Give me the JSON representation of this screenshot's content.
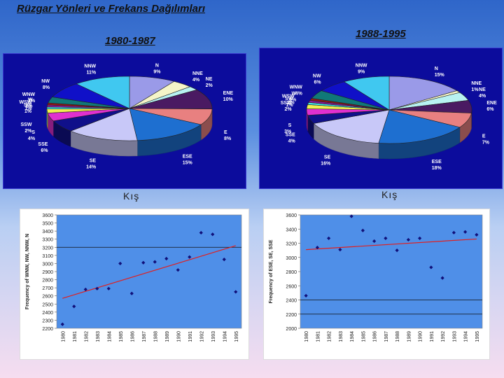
{
  "title": "Rüzgar Yönleri ve Frekans Dağılımları",
  "colors": {
    "pie_bg": "#0c0c9c",
    "plot_bg": "#4f8fe8",
    "point": "#10107a",
    "trend": "#e02020",
    "ref_line": "#111111"
  },
  "periods": {
    "left": "1980-1987",
    "right": "1988-1995"
  },
  "season": {
    "left": "Kış",
    "right": "Kış"
  },
  "chart_data": [
    {
      "type": "pie",
      "period": "1980-1987",
      "slices": [
        {
          "label": "N",
          "percent": "9%",
          "value": 9,
          "color": "#9a9ae8"
        },
        {
          "label": "NNE",
          "percent": "4%",
          "value": 4,
          "color": "#f5f5c8"
        },
        {
          "label": "NE",
          "percent": "2%",
          "value": 2,
          "color": "#b8f2f2"
        },
        {
          "label": "ENE",
          "percent": "10%",
          "value": 10,
          "color": "#4a1a62"
        },
        {
          "label": "E",
          "percent": "8%",
          "value": 8,
          "color": "#e88080"
        },
        {
          "label": "ESE",
          "percent": "15%",
          "value": 15,
          "color": "#1e6fd0"
        },
        {
          "label": "SE",
          "percent": "14%",
          "value": 14,
          "color": "#c8c8f8"
        },
        {
          "label": "SSE",
          "percent": "6%",
          "value": 6,
          "color": "#10108a"
        },
        {
          "label": "S",
          "percent": "4%",
          "value": 4,
          "color": "#e030d0"
        },
        {
          "label": "SSW",
          "percent": "2%",
          "value": 2,
          "color": "#f0f050"
        },
        {
          "label": "SW",
          "percent": "1%",
          "value": 1,
          "color": "#40e8e8"
        },
        {
          "label": "WSW",
          "percent": "1%",
          "value": 1,
          "color": "#8a1a9a"
        },
        {
          "label": "W",
          "percent": "1%",
          "value": 1,
          "color": "#901818"
        },
        {
          "label": "WNW",
          "percent": "3%",
          "value": 3,
          "color": "#107878"
        },
        {
          "label": "NW",
          "percent": "8%",
          "value": 8,
          "color": "#1010c8"
        },
        {
          "label": "NNW",
          "percent": "11%",
          "value": 11,
          "color": "#40c8f0"
        }
      ]
    },
    {
      "type": "pie",
      "period": "1988-1995",
      "slices": [
        {
          "label": "N",
          "percent": "15%",
          "value": 15,
          "color": "#9a9ae8"
        },
        {
          "label": "NNE",
          "percent": "1%",
          "value": 1,
          "color": "#f5f5c8"
        },
        {
          "label": "NE",
          "percent": "4%",
          "value": 4,
          "color": "#b8f2f2"
        },
        {
          "label": "ENE",
          "percent": "6%",
          "value": 6,
          "color": "#4a1a62"
        },
        {
          "label": "E",
          "percent": "7%",
          "value": 7,
          "color": "#e88080"
        },
        {
          "label": "ESE",
          "percent": "18%",
          "value": 18,
          "color": "#1e6fd0"
        },
        {
          "label": "SE",
          "percent": "16%",
          "value": 16,
          "color": "#c8c8f8"
        },
        {
          "label": "SSE",
          "percent": "4%",
          "value": 4,
          "color": "#10108a"
        },
        {
          "label": "S",
          "percent": "3%",
          "value": 3,
          "color": "#e030d0"
        },
        {
          "label": "SSW",
          "percent": "2%",
          "value": 2,
          "color": "#f0f050"
        },
        {
          "label": "SW",
          "percent": "1%",
          "value": 1,
          "color": "#40e8e8"
        },
        {
          "label": "WSW",
          "percent": "1%",
          "value": 1,
          "color": "#8a1a9a"
        },
        {
          "label": "W",
          "percent": "1%",
          "value": 1,
          "color": "#901818"
        },
        {
          "label": "WNW",
          "percent": "4%",
          "value": 4,
          "color": "#107878"
        },
        {
          "label": "NW",
          "percent": "6%",
          "value": 6,
          "color": "#1010c8"
        },
        {
          "label": "NNW",
          "percent": "9%",
          "value": 9,
          "color": "#40c8f0"
        }
      ]
    },
    {
      "type": "scatter",
      "ylabel": "Frequency of WNW, NW, NNW, N",
      "ylim": [
        2200,
        3600
      ],
      "yticks": [
        2200,
        2300,
        2400,
        2500,
        2600,
        2700,
        2800,
        2900,
        3000,
        3100,
        3200,
        3300,
        3400,
        3500,
        3600
      ],
      "x": [
        "1980",
        "1981",
        "1982",
        "1983",
        "1984",
        "1985",
        "1986",
        "1987",
        "1988",
        "1989",
        "1990",
        "1991",
        "1992",
        "1993",
        "1994",
        "1995"
      ],
      "y": [
        2250,
        2470,
        2680,
        2690,
        2690,
        3000,
        2630,
        3010,
        3020,
        3060,
        2920,
        3080,
        3380,
        3360,
        3050,
        2650
      ],
      "trend": {
        "start": 2570,
        "end": 3220
      },
      "ref_line": 3200
    },
    {
      "type": "scatter",
      "ylabel": "Frequency of ESE, SE, SSE",
      "ylim": [
        2000,
        3600
      ],
      "yticks": [
        2000,
        2200,
        2400,
        2600,
        2800,
        3000,
        3200,
        3400,
        3600
      ],
      "x": [
        "1980",
        "1981",
        "1982",
        "1983",
        "1984",
        "1985",
        "1986",
        "1987",
        "1988",
        "1989",
        "1990",
        "1991",
        "1992",
        "1993",
        "1994",
        "1995"
      ],
      "y": [
        2460,
        3140,
        3270,
        3110,
        3580,
        3380,
        3230,
        3270,
        3100,
        3250,
        3270,
        2860,
        2710,
        3350,
        3360,
        3320
      ],
      "trend": {
        "start": 3110,
        "end": 3260
      },
      "ref_lines": [
        2400,
        2200
      ]
    }
  ]
}
